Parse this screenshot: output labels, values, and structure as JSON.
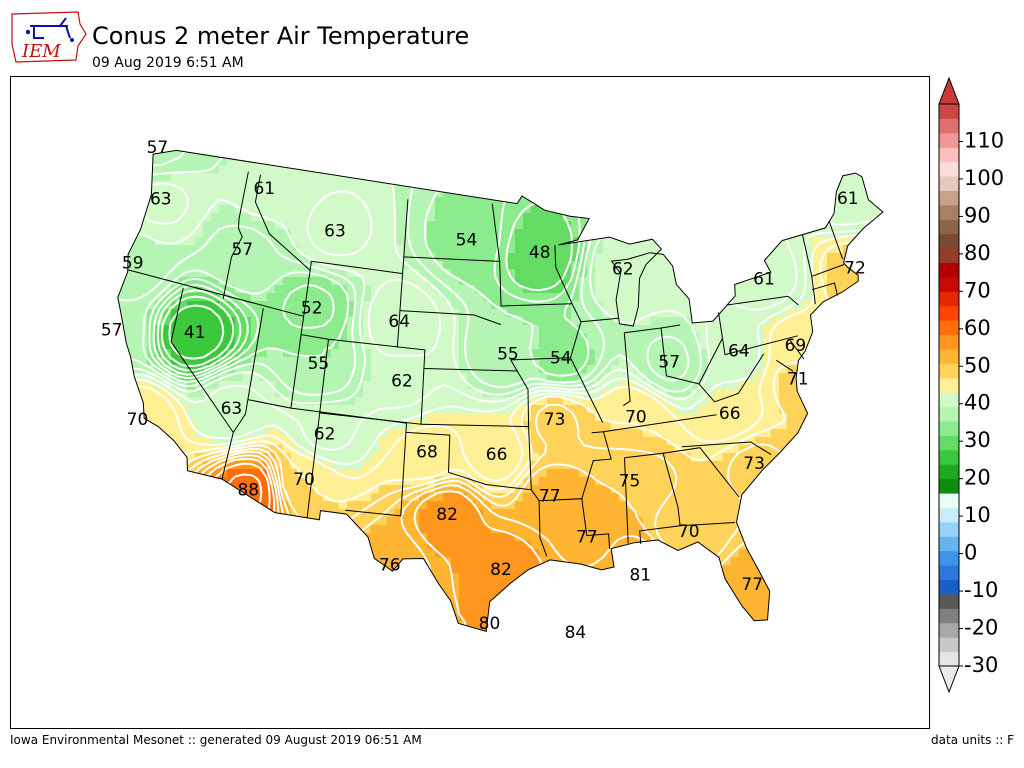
{
  "header": {
    "logo_text": "IEM",
    "title": "Conus 2 meter Air Temperature",
    "subtitle": "09 Aug 2019 6:51 AM"
  },
  "footer": {
    "left": "Iowa Environmental Mesonet :: generated 09 August 2019 06:51 AM",
    "right": "data units :: F"
  },
  "colorbar": {
    "tick_labels": [
      "110",
      "100",
      "90",
      "80",
      "70",
      "60",
      "50",
      "40",
      "30",
      "20",
      "10",
      "0",
      "-10",
      "-20",
      "-30"
    ],
    "min": -30,
    "max": 120,
    "step": 5,
    "colors": [
      "#e5e5e5",
      "#c8c8c8",
      "#a8a8a8",
      "#808080",
      "#585858",
      "#1a5ec8",
      "#2a78dc",
      "#3c96e6",
      "#64b4f0",
      "#96d2f8",
      "#c8ecfa",
      "#e8fcf8",
      "#0e8c0e",
      "#1eaa1e",
      "#3cc83c",
      "#64dc64",
      "#8ceb8c",
      "#b4f5b4",
      "#d2fac8",
      "#fff096",
      "#ffd25a",
      "#ffb432",
      "#ff961e",
      "#ff6e0a",
      "#ff4600",
      "#e62800",
      "#c80a00",
      "#b40000",
      "#963c28",
      "#7a4a32",
      "#8c6446",
      "#a88064",
      "#c8a08c",
      "#e6c8bc",
      "#ffdcdc",
      "#ffbebe",
      "#f09696",
      "#e07070",
      "#cc4848"
    ],
    "overflow_color": "#c83c3c",
    "underflow_color": "#ebebeb"
  },
  "map": {
    "labels": [
      {
        "text": "57",
        "lon": -124.5,
        "lat": 48.8
      },
      {
        "text": "61",
        "lon": -115.5,
        "lat": 48.3
      },
      {
        "text": "63",
        "lon": -123.2,
        "lat": 46.2
      },
      {
        "text": "63",
        "lon": -109.5,
        "lat": 46.8
      },
      {
        "text": "54",
        "lon": -99.2,
        "lat": 47.0
      },
      {
        "text": "48",
        "lon": -93.5,
        "lat": 46.3
      },
      {
        "text": "57",
        "lon": -116.3,
        "lat": 44.8
      },
      {
        "text": "59",
        "lon": -124.0,
        "lat": 42.4
      },
      {
        "text": "62",
        "lon": -87.2,
        "lat": 45.1
      },
      {
        "text": "61",
        "lon": -69.3,
        "lat": 46.1
      },
      {
        "text": "52",
        "lon": -110.5,
        "lat": 42.5
      },
      {
        "text": "64",
        "lon": -104.0,
        "lat": 42.4
      },
      {
        "text": "61",
        "lon": -76.8,
        "lat": 43.2
      },
      {
        "text": "72",
        "lon": -70.1,
        "lat": 42.4
      },
      {
        "text": "55",
        "lon": -96.0,
        "lat": 40.9
      },
      {
        "text": "54",
        "lon": -92.2,
        "lat": 40.6
      },
      {
        "text": "41",
        "lon": -118.5,
        "lat": 39.8
      },
      {
        "text": "55",
        "lon": -109.5,
        "lat": 39.6
      },
      {
        "text": "62",
        "lon": -103.5,
        "lat": 39.2
      },
      {
        "text": "57",
        "lon": -84.5,
        "lat": 39.8
      },
      {
        "text": "64",
        "lon": -79.5,
        "lat": 39.7
      },
      {
        "text": "69",
        "lon": -75.5,
        "lat": 39.3
      },
      {
        "text": "57",
        "lon": -124.2,
        "lat": 38.6
      },
      {
        "text": "73",
        "lon": -92.8,
        "lat": 37.3
      },
      {
        "text": "70",
        "lon": -87.2,
        "lat": 37.1
      },
      {
        "text": "71",
        "lon": -75.8,
        "lat": 37.5
      },
      {
        "text": "63",
        "lon": -115.0,
        "lat": 36.3
      },
      {
        "text": "62",
        "lon": -108.5,
        "lat": 35.9
      },
      {
        "text": "68",
        "lon": -101.5,
        "lat": 35.5
      },
      {
        "text": "66",
        "lon": -96.8,
        "lat": 35.5
      },
      {
        "text": "66",
        "lon": -80.8,
        "lat": 36.5
      },
      {
        "text": "70",
        "lon": -121.0,
        "lat": 34.4
      },
      {
        "text": "75",
        "lon": -88.0,
        "lat": 33.7
      },
      {
        "text": "73",
        "lon": -79.7,
        "lat": 33.6
      },
      {
        "text": "77",
        "lon": -93.3,
        "lat": 33.2
      },
      {
        "text": "70",
        "lon": -109.5,
        "lat": 33.3
      },
      {
        "text": "88",
        "lon": -113.0,
        "lat": 32.2
      },
      {
        "text": "82",
        "lon": -100.0,
        "lat": 32.2
      },
      {
        "text": "77",
        "lon": -91.0,
        "lat": 30.9
      },
      {
        "text": "70",
        "lon": -84.5,
        "lat": 30.6
      },
      {
        "text": "76",
        "lon": -103.5,
        "lat": 29.3
      },
      {
        "text": "82",
        "lon": -96.5,
        "lat": 29.3
      },
      {
        "text": "81",
        "lon": -87.8,
        "lat": 28.6
      },
      {
        "text": "77",
        "lon": -81.0,
        "lat": 27.2
      },
      {
        "text": "80",
        "lon": -97.2,
        "lat": 26.4
      },
      {
        "text": "84",
        "lon": -92.0,
        "lat": 25.8
      }
    ]
  }
}
